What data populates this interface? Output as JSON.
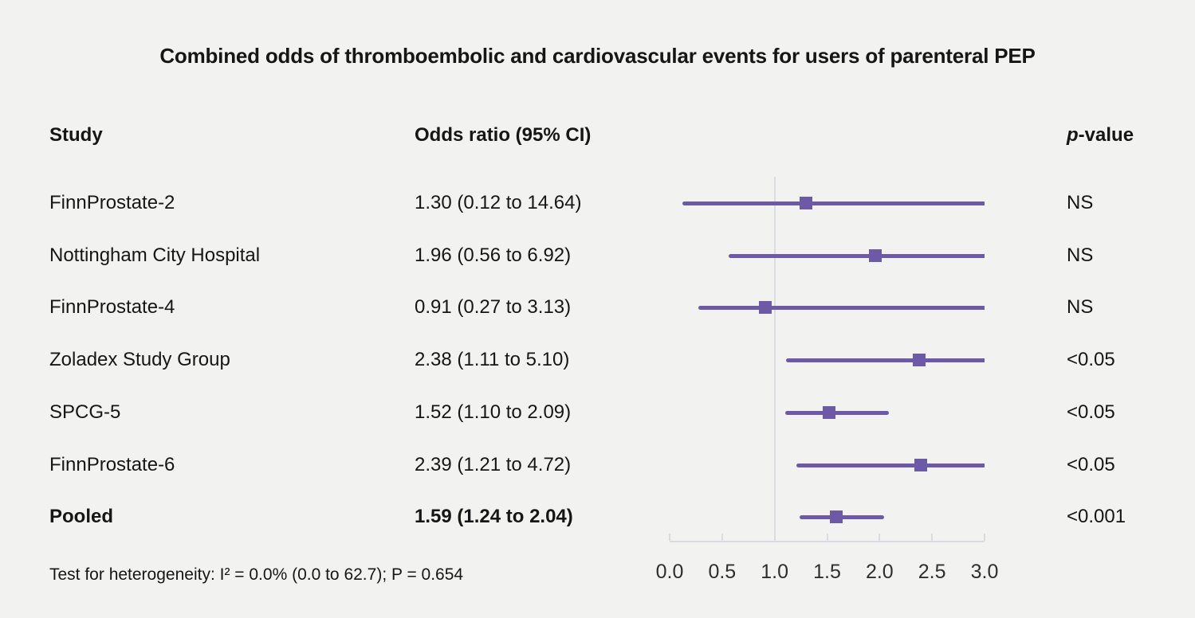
{
  "title": "Combined odds of thromboembolic and cardiovascular events for users of parenteral PEP",
  "columns": {
    "study": "Study",
    "odds_ratio": "Odds ratio (95% CI)",
    "p_italic": "p",
    "p_rest": "-value"
  },
  "footer": "Test for heterogeneity: I² = 0.0% (0.0 to 62.7); P = 0.654",
  "colors": {
    "background": "#f2f2f1",
    "text": "#161616",
    "accent_purple": "#6c5aa6",
    "grid": "#d9dde2",
    "tick_label": "#2e2e2e"
  },
  "chart_data": {
    "type": "forest",
    "title": "Combined odds of thromboembolic and cardiovascular events for users of parenteral PEP",
    "x_axis": {
      "label": "",
      "min": 0.0,
      "max": 3.0,
      "ticks": [
        0.0,
        0.5,
        1.0,
        1.5,
        2.0,
        2.5,
        3.0
      ],
      "tick_labels": [
        "0.0",
        "0.5",
        "1.0",
        "1.5",
        "2.0",
        "2.5",
        "3.0"
      ],
      "reference_line": 1.0,
      "grid": false
    },
    "rows": [
      {
        "study": "FinnProstate-2",
        "or_text": "1.30 (0.12 to 14.64)",
        "or": 1.3,
        "ci_low": 0.12,
        "ci_high": 14.64,
        "p_value": "NS",
        "bold": false
      },
      {
        "study": "Nottingham City Hospital",
        "or_text": "1.96 (0.56 to 6.92)",
        "or": 1.96,
        "ci_low": 0.56,
        "ci_high": 6.92,
        "p_value": "NS",
        "bold": false
      },
      {
        "study": "FinnProstate-4",
        "or_text": "0.91 (0.27 to 3.13)",
        "or": 0.91,
        "ci_low": 0.27,
        "ci_high": 3.13,
        "p_value": "NS",
        "bold": false
      },
      {
        "study": "Zoladex Study Group",
        "or_text": "2.38 (1.11 to 5.10)",
        "or": 2.38,
        "ci_low": 1.11,
        "ci_high": 5.1,
        "p_value": "<0.05",
        "bold": false
      },
      {
        "study": "SPCG-5",
        "or_text": "1.52 (1.10 to 2.09)",
        "or": 1.52,
        "ci_low": 1.1,
        "ci_high": 2.09,
        "p_value": "<0.05",
        "bold": false
      },
      {
        "study": "FinnProstate-6",
        "or_text": "2.39 (1.21 to 4.72)",
        "or": 2.39,
        "ci_low": 1.21,
        "ci_high": 4.72,
        "p_value": "<0.05",
        "bold": false
      },
      {
        "study": "Pooled",
        "or_text": "1.59 (1.24 to 2.04)",
        "or": 1.59,
        "ci_low": 1.24,
        "ci_high": 2.04,
        "p_value": "<0.001",
        "bold": true
      }
    ]
  }
}
